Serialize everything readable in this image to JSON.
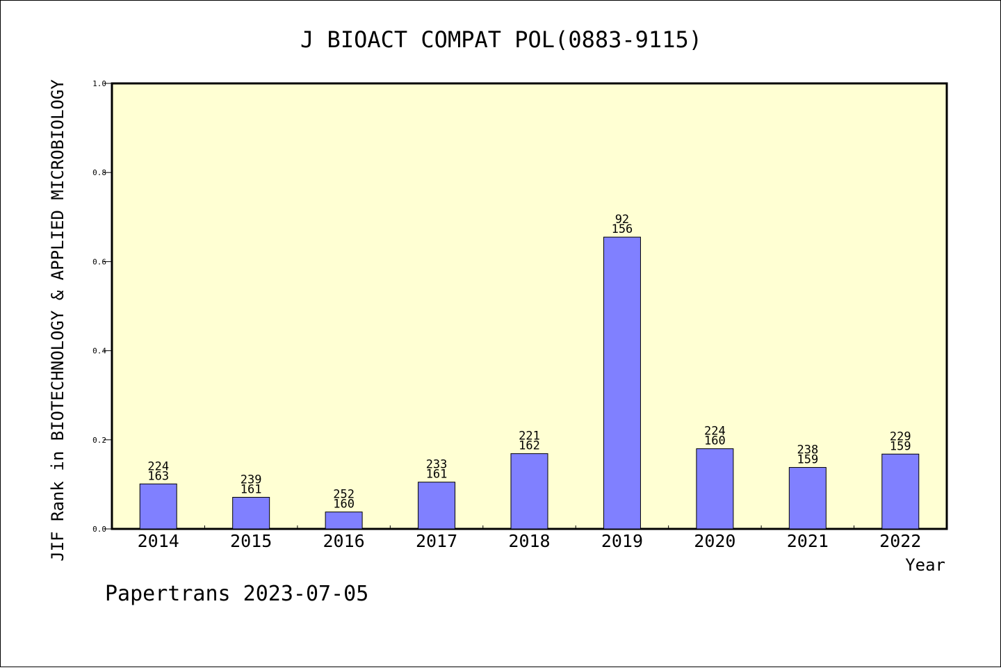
{
  "chart_data": {
    "type": "bar",
    "title": "J BIOACT COMPAT POL(0883-9115)",
    "xlabel": "Year",
    "ylabel": "JIF Rank in BIOTECHNOLOGY & APPLIED MICROBIOLOGY",
    "ylim": [
      0,
      1.0
    ],
    "yticks": [
      "0.0",
      "0.2",
      "0.4",
      "0.6",
      "0.8",
      "1.0"
    ],
    "grid": false,
    "categories": [
      "2014",
      "2015",
      "2016",
      "2017",
      "2018",
      "2019",
      "2020",
      "2021",
      "2022"
    ],
    "values": [
      0.101,
      0.071,
      0.038,
      0.105,
      0.169,
      0.655,
      0.18,
      0.138,
      0.168
    ],
    "label_rank": [
      "224",
      "239",
      "252",
      "233",
      "221",
      "92",
      "224",
      "238",
      "229"
    ],
    "label_total": [
      "163",
      "161",
      "160",
      "161",
      "162",
      "156",
      "160",
      "159",
      "159"
    ],
    "colors": {
      "plot_bg": "#ffffd3",
      "bar": "#8080ff",
      "bar_edge": "#000000"
    }
  },
  "footer": "Papertrans 2023-07-05"
}
